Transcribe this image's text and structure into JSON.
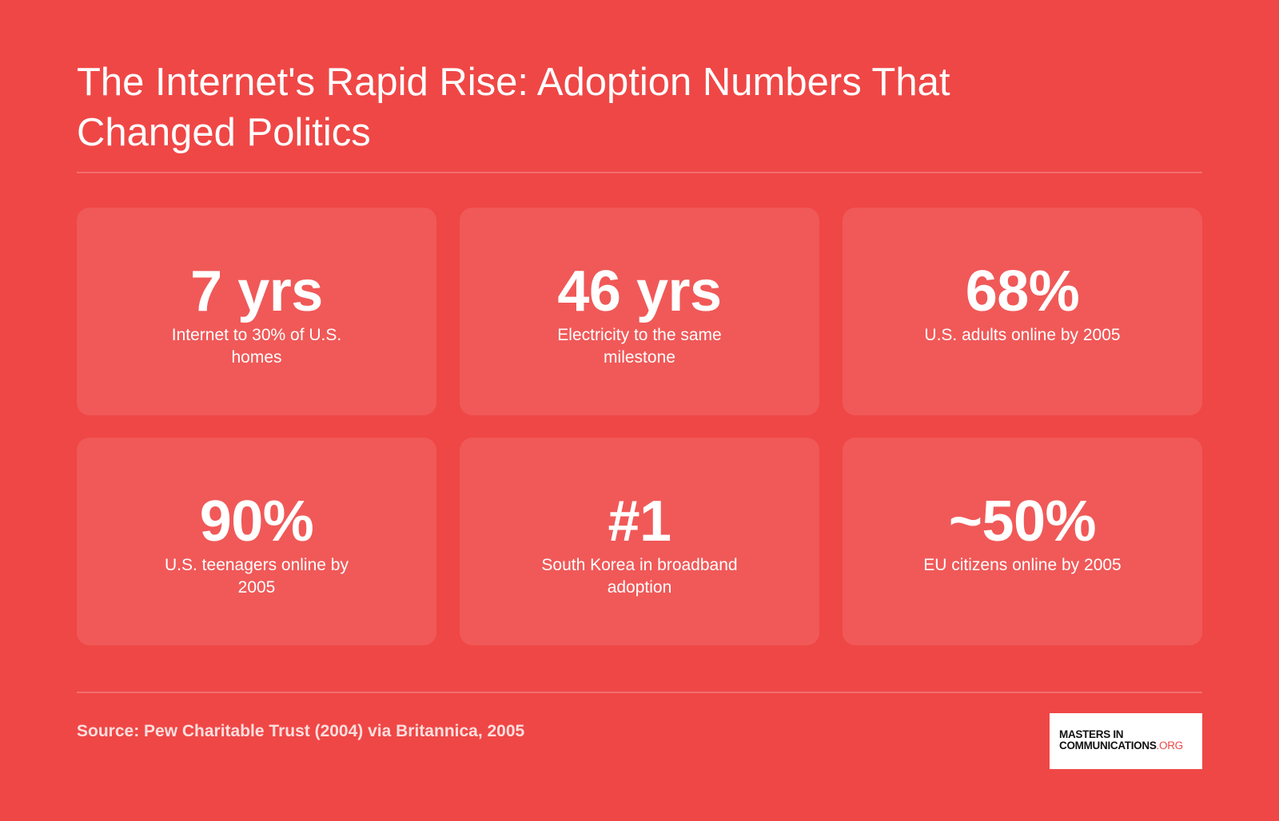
{
  "title": "The Internet's Rapid Rise: Adoption Numbers That Changed Politics",
  "stats": [
    {
      "value": "7 yrs",
      "label": "Internet to 30% of U.S. homes"
    },
    {
      "value": "46 yrs",
      "label": "Electricity to the same milestone"
    },
    {
      "value": "68%",
      "label": "U.S. adults online by 2005"
    },
    {
      "value": "90%",
      "label": "U.S. teenagers online by 2005"
    },
    {
      "value": "#1",
      "label": "South Korea in broadband adoption"
    },
    {
      "value": "~50%",
      "label": "EU citizens online by 2005"
    }
  ],
  "footer": {
    "source": "Source: Pew Charitable Trust (2004) via Britannica, 2005",
    "logo": {
      "line1": "MASTERS IN",
      "line2": "COMMUNICATIONS",
      "accent": ".ORG"
    }
  },
  "colors": {
    "background": "#ef4746",
    "card": "rgba(255,255,255,0.10)",
    "text": "#ffffff",
    "logo_accent": "#ef4746"
  }
}
